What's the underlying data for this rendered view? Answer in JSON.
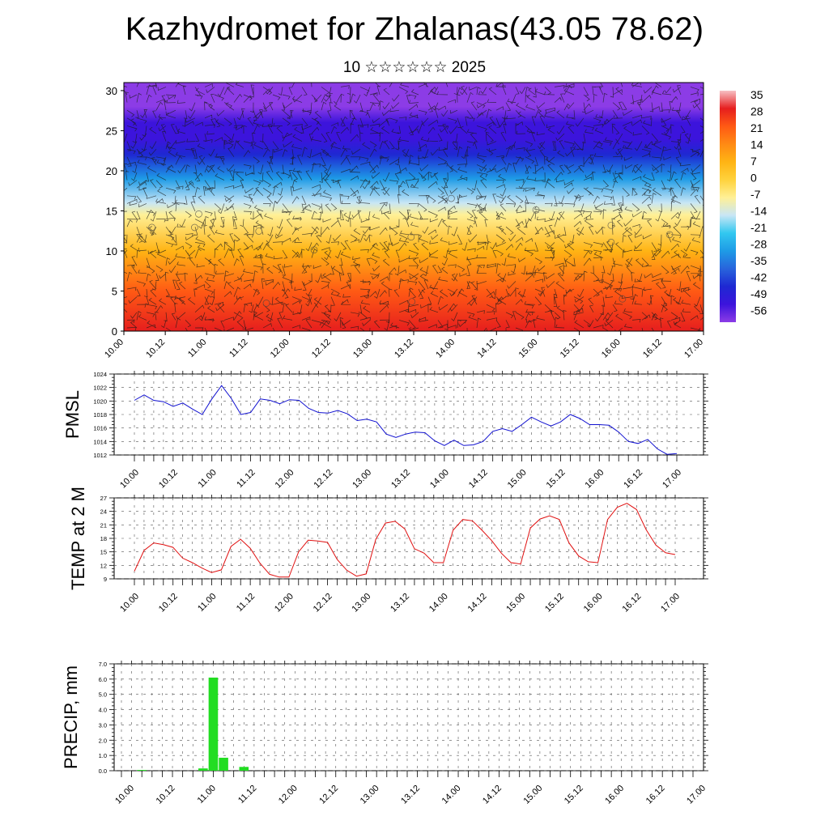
{
  "header": {
    "title": "Kazhydromet for Zhalanas(43.05 78.62)",
    "subtitle": "10 ☆☆☆☆☆☆ 2025"
  },
  "x_tick_labels": [
    "10.00",
    "10.12",
    "11.00",
    "11.12",
    "12.00",
    "12.12",
    "13.00",
    "13.12",
    "14.00",
    "14.12",
    "15.00",
    "15.12",
    "16.00",
    "16.12",
    "17.00"
  ],
  "chart_data": [
    {
      "type": "heatmap",
      "y_ticks": [
        0,
        5,
        10,
        15,
        20,
        25,
        30
      ],
      "ylim": [
        0,
        31
      ],
      "colorbar": {
        "labels": [
          "35",
          "28",
          "21",
          "14",
          "7",
          "0",
          "-7",
          "-14",
          "-21",
          "-28",
          "-35",
          "-42",
          "-49",
          "-56"
        ],
        "colors": [
          "#f7bfc4",
          "#e61e1e",
          "#ff5a14",
          "#ff8a14",
          "#ffb414",
          "#ffd23c",
          "#fff096",
          "#c8e6f5",
          "#32c8f0",
          "#1e9be6",
          "#2864dc",
          "#1e28d2",
          "#3c14dc",
          "#8c3ce6"
        ]
      },
      "profile": [
        {
          "level": 0,
          "value": 30
        },
        {
          "level": 5,
          "value": 18
        },
        {
          "level": 10,
          "value": 5
        },
        {
          "level": 14.5,
          "value": -8
        },
        {
          "level": 16,
          "value": -14
        },
        {
          "level": 19,
          "value": -28
        },
        {
          "level": 22,
          "value": -42
        },
        {
          "level": 24,
          "value": -52
        },
        {
          "level": 26,
          "value": -50
        },
        {
          "level": 28,
          "value": -58
        },
        {
          "level": 31,
          "value": -62
        }
      ]
    },
    {
      "type": "line",
      "ylabel": "PMSL",
      "ylim": [
        1012,
        1024
      ],
      "y_ticks": [
        1012,
        1014,
        1016,
        1018,
        1020,
        1022,
        1024
      ],
      "color": "#1010d0",
      "values": [
        1020.1,
        1020.9,
        1020.1,
        1019.9,
        1019.2,
        1019.7,
        1018.8,
        1018.0,
        1020.3,
        1022.3,
        1020.4,
        1018.0,
        1018.3,
        1020.3,
        1020.1,
        1019.6,
        1020.2,
        1020.1,
        1018.9,
        1018.3,
        1018.2,
        1018.6,
        1018.1,
        1017.1,
        1017.3,
        1016.9,
        1015.1,
        1014.6,
        1015.1,
        1015.4,
        1015.3,
        1014.1,
        1013.4,
        1014.2,
        1013.4,
        1013.5,
        1014.0,
        1015.5,
        1015.9,
        1015.5,
        1016.5,
        1017.6,
        1016.9,
        1016.3,
        1016.9,
        1018.0,
        1017.4,
        1016.5,
        1016.5,
        1016.4,
        1015.4,
        1014.0,
        1013.7,
        1014.3,
        1012.9,
        1012.1,
        1012.2
      ]
    },
    {
      "type": "line",
      "ylabel": "TEMP at 2 M",
      "ylim": [
        9,
        27
      ],
      "y_ticks": [
        9,
        12,
        15,
        18,
        21,
        24,
        27
      ],
      "color": "#e01010",
      "values": [
        10.7,
        15.3,
        17.0,
        16.6,
        16.0,
        13.6,
        12.6,
        11.4,
        10.4,
        11.0,
        16.2,
        17.8,
        15.8,
        12.5,
        10.0,
        9.4,
        9.4,
        15.0,
        17.6,
        17.4,
        17.1,
        13.3,
        10.9,
        9.6,
        10.1,
        17.8,
        21.4,
        21.8,
        20.1,
        15.7,
        14.7,
        12.6,
        12.6,
        19.8,
        22.2,
        21.9,
        19.8,
        17.5,
        14.7,
        12.6,
        12.3,
        20.3,
        22.3,
        23.0,
        22.2,
        17.0,
        14.1,
        12.8,
        12.6,
        22.2,
        24.9,
        25.8,
        24.4,
        19.9,
        16.5,
        14.8,
        14.4
      ]
    },
    {
      "type": "bar",
      "ylabel": "PRECIP, mm",
      "ylim": [
        0,
        7
      ],
      "y_ticks": [
        "0.0",
        "1.0",
        "2.0",
        "3.0",
        "4.0",
        "5.0",
        "6.0",
        "7.0"
      ],
      "color": "#22dd22",
      "values": [
        0,
        0,
        0.05,
        0,
        0,
        0,
        0,
        0,
        0.15,
        6.1,
        0.85,
        0,
        0.25,
        0,
        0,
        0,
        0,
        0,
        0,
        0,
        0,
        0,
        0,
        0,
        0,
        0,
        0,
        0,
        0,
        0,
        0,
        0,
        0,
        0,
        0,
        0,
        0,
        0,
        0,
        0,
        0,
        0,
        0,
        0,
        0,
        0,
        0,
        0,
        0,
        0,
        0,
        0,
        0,
        0,
        0,
        0,
        0
      ]
    }
  ]
}
